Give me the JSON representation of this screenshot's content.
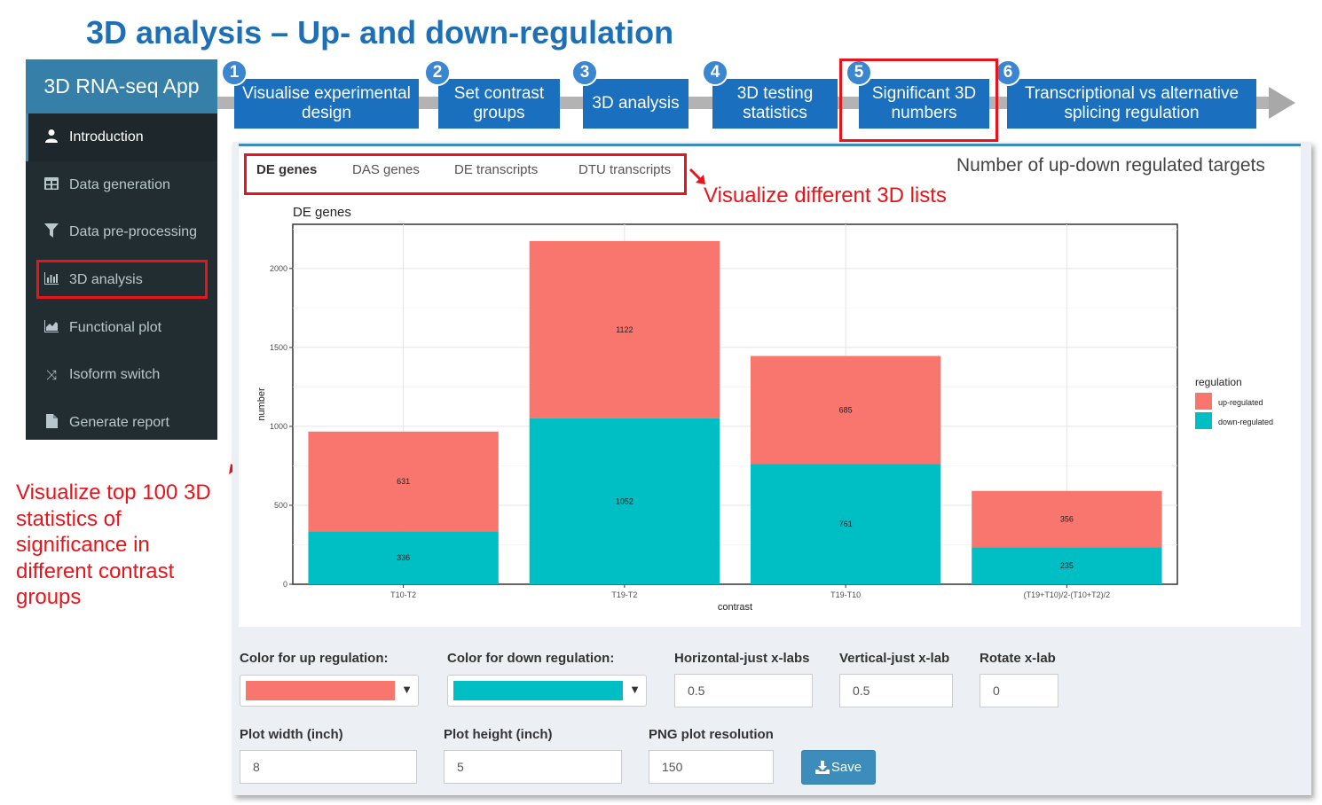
{
  "page_title": "3D analysis – Up- and down-regulation",
  "workflow": {
    "steps": [
      {
        "num": "1",
        "label": "Visualise experimental design"
      },
      {
        "num": "2",
        "label": "Set contrast groups"
      },
      {
        "num": "3",
        "label": "3D analysis"
      },
      {
        "num": "4",
        "label": "3D testing statistics"
      },
      {
        "num": "5",
        "label": "Significant 3D numbers"
      },
      {
        "num": "6",
        "label": "Transcriptional vs alternative splicing regulation"
      }
    ]
  },
  "sidebar": {
    "app_title": "3D RNA-seq App",
    "items": [
      {
        "label": "Introduction",
        "icon": "user-icon"
      },
      {
        "label": "Data generation",
        "icon": "table-icon"
      },
      {
        "label": "Data pre-processing",
        "icon": "filter-icon"
      },
      {
        "label": "3D analysis",
        "icon": "bar-chart-icon"
      },
      {
        "label": "Functional plot",
        "icon": "area-chart-icon"
      },
      {
        "label": "Isoform switch",
        "icon": "shuffle-icon"
      },
      {
        "label": "Generate report",
        "icon": "file-icon"
      }
    ]
  },
  "annotations": {
    "lists": "Visualize different 3D lists",
    "top100": [
      "Visualize top 100 3D",
      "statistics of",
      "significance in",
      "different contrast",
      "groups"
    ]
  },
  "tabs": [
    "DE genes",
    "DAS genes",
    "DE transcripts",
    "DTU transcripts"
  ],
  "box_title": "Number of up-down regulated targets",
  "colors": {
    "up": "#f8766d",
    "down": "#00bfc4",
    "accent": "#1a6fbf",
    "highlight": "#e8141b"
  },
  "chart_data": {
    "type": "bar",
    "stacked": true,
    "title": "DE genes",
    "xlabel": "contrast",
    "ylabel": "number",
    "categories": [
      "T10-T2",
      "T19-T2",
      "T19-T10",
      "(T19+T10)/2-(T10+T2)/2"
    ],
    "series": [
      {
        "name": "up-regulated",
        "values": [
          631,
          1122,
          685,
          356
        ]
      },
      {
        "name": "down-regulated",
        "values": [
          336,
          1052,
          761,
          235
        ]
      }
    ],
    "ylim": [
      0,
      2280
    ],
    "yticks": [
      0,
      500,
      1000,
      1500,
      2000
    ],
    "legend": {
      "title": "regulation",
      "position": "right"
    },
    "grid": true
  },
  "controls": {
    "up_color_label": "Color for up regulation:",
    "down_color_label": "Color for down regulation:",
    "hjust_label": "Horizontal-just x-labs",
    "hjust_value": "0.5",
    "vjust_label": "Vertical-just x-lab",
    "vjust_value": "0.5",
    "rotate_label": "Rotate x-lab",
    "rotate_value": "0",
    "width_label": "Plot width (inch)",
    "width_value": "8",
    "height_label": "Plot height (inch)",
    "height_value": "5",
    "res_label": "PNG plot resolution",
    "res_value": "150",
    "save_label": "Save"
  }
}
